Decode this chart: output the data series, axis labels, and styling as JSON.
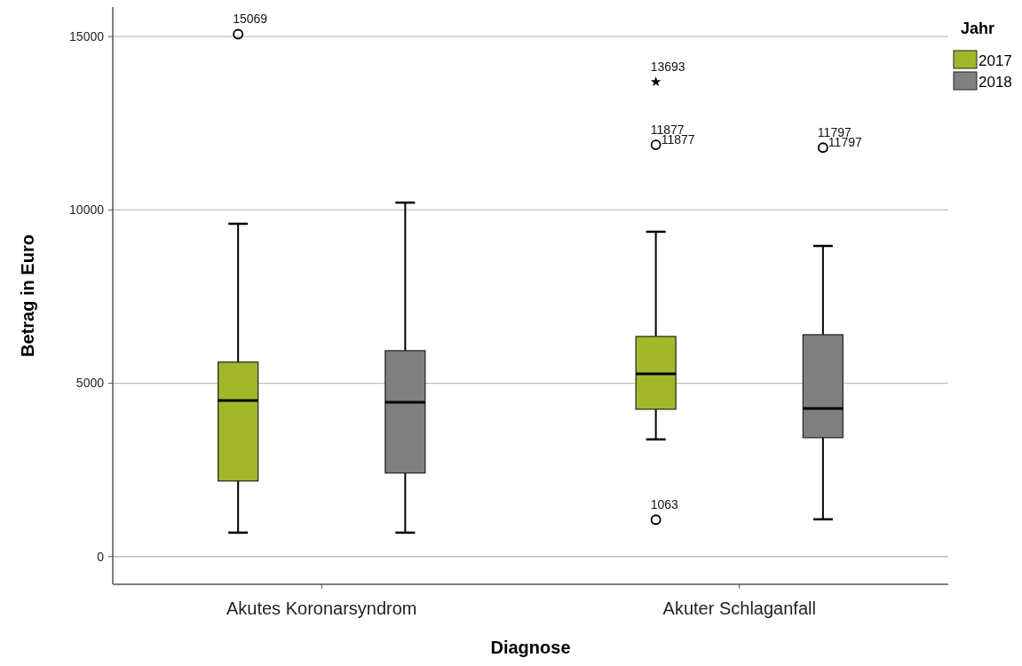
{
  "chart_data": {
    "type": "box",
    "xlabel": "Diagnose",
    "ylabel": "Betrag in Euro",
    "legend_title": "Jahr",
    "legend": "top right",
    "grid": "y",
    "categories": [
      "Akutes Koronarsyndrom",
      "Akuter Schlaganfall"
    ],
    "ylim": [
      -800,
      15850
    ],
    "yticks": [
      0,
      5000,
      10000,
      15000
    ],
    "series": [
      {
        "name": "2017",
        "color": "#a2b72a",
        "boxes": [
          {
            "low": 690,
            "q1": 2180,
            "median": 4500,
            "q3": 5610,
            "high": 9600,
            "outliers": [
              15069
            ]
          },
          {
            "low": 3380,
            "q1": 4250,
            "median": 5270,
            "q3": 6350,
            "high": 9370,
            "outliers": [
              11877,
              1063
            ]
          }
        ]
      },
      {
        "name": "2018",
        "color": "#808080",
        "boxes": [
          {
            "low": 690,
            "q1": 2410,
            "median": 4450,
            "q3": 5940,
            "high": 10210
          },
          {
            "low": 1075,
            "q1": 3430,
            "median": 4270,
            "q3": 6400,
            "high": 8960,
            "outliers": [
              11797
            ]
          }
        ]
      },
      {
        "type": "scatter",
        "marker": "star",
        "color": "#000000",
        "x": [
          "Akuter Schlaganfall"
        ],
        "values": [
          13693
        ]
      }
    ],
    "annotations": [
      "15069",
      "13693",
      "11877",
      "11877",
      "11797",
      "11797",
      "1063"
    ]
  }
}
